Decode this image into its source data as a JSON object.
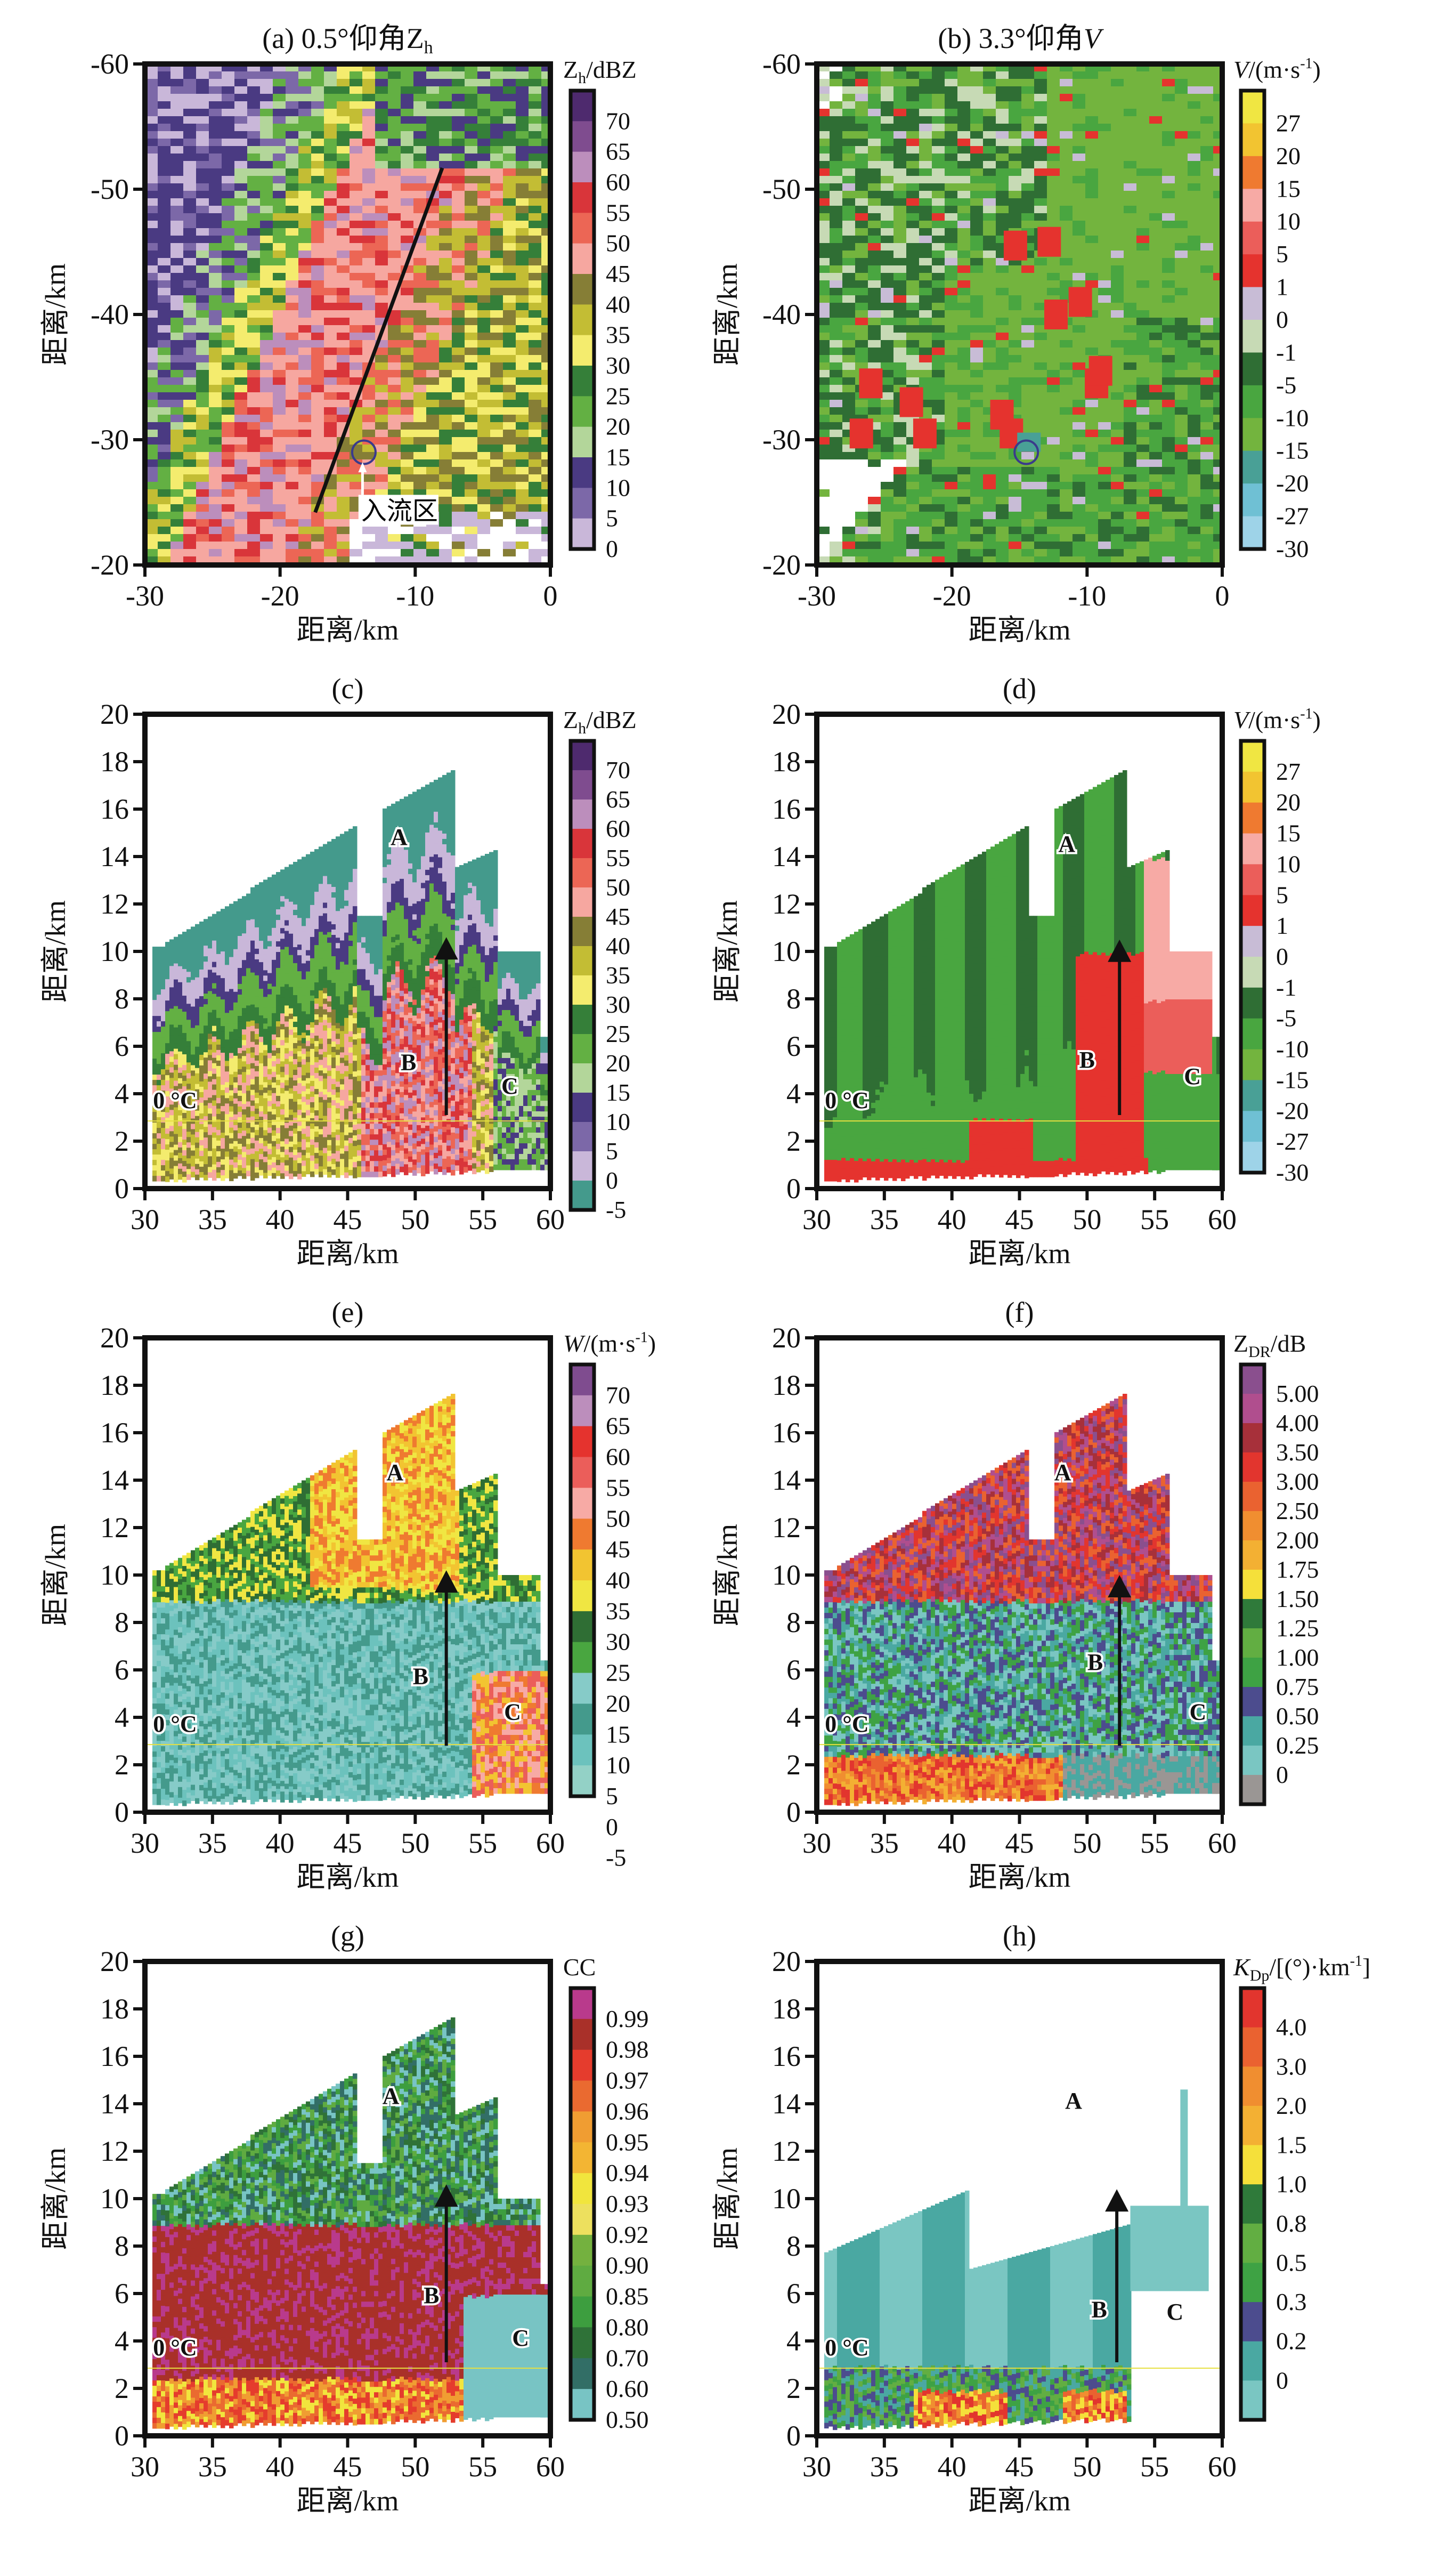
{
  "figure": {
    "panels_count": 8
  },
  "chart_data": [
    {
      "id": "a",
      "type": "heatmap",
      "title": "(a) 0.5°仰角Z",
      "title_sub": "h",
      "xlabel": "距离/km",
      "ylabel": "距离/km",
      "xlim": [
        -30,
        0
      ],
      "ylim": [
        -20,
        -60
      ],
      "xticks": [
        "-30",
        "-20",
        "-10",
        "0"
      ],
      "yticks": [
        "-60",
        "-50",
        "-40",
        "-30",
        "-20"
      ],
      "grid": false,
      "colorbar": {
        "title": "Z",
        "title_sub": "h",
        "title_rest": "/dBZ",
        "labels": [
          "70",
          "65",
          "60",
          "55",
          "50",
          "45",
          "40",
          "35",
          "30",
          "25",
          "20",
          "15",
          "10",
          "5",
          "0"
        ],
        "colors": [
          "#4e2a6e",
          "#7f4c8f",
          "#bc8ebc",
          "#d9353a",
          "#ec6655",
          "#f6a7a0",
          "#867e36",
          "#c3bd34",
          "#f4ec6e",
          "#357f39",
          "#63b043",
          "#b3d69a",
          "#4a3a82",
          "#7c68a8",
          "#c9b7d9"
        ]
      },
      "annotations": [
        {
          "text": "入流区",
          "x": -13.5,
          "y": -25.8
        },
        {
          "text": "cross-section line",
          "from": [
            -17.4,
            -24.2
          ],
          "to": [
            -8.0,
            -51.7
          ]
        },
        {
          "text": "inflow circle",
          "x": -13.8,
          "y": -29.0
        }
      ],
      "description": "Reflectivity PPI: core of 45–60 dBZ along line from (-17,-24) to (-8,-52); weak echo (0–15 dBZ) west and south"
    },
    {
      "id": "b",
      "type": "heatmap",
      "title": "(b) 3.3°仰角",
      "title_var": "V",
      "xlabel": "距离/km",
      "ylabel": "距离/km",
      "xlim": [
        -30,
        0
      ],
      "ylim": [
        -20,
        -60
      ],
      "xticks": [
        "-30",
        "-20",
        "-10",
        "0"
      ],
      "yticks": [
        "-60",
        "-50",
        "-40",
        "-30",
        "-20"
      ],
      "grid": false,
      "colorbar": {
        "title": "V",
        "title_rest": "/(m·s",
        "title_sup": "-1",
        "title_end": ")",
        "labels": [
          "27",
          "20",
          "15",
          "10",
          "5",
          "1",
          "0",
          "-1",
          "-5",
          "-10",
          "-15",
          "-20",
          "-27",
          "-30"
        ],
        "colors": [
          "#f0e642",
          "#f2c431",
          "#ef7a30",
          "#f7aaa5",
          "#eb5e5a",
          "#e5332e",
          "#c8bcd6",
          "#c7dab5",
          "#2f6e34",
          "#49a640",
          "#73b43e",
          "#49a096",
          "#6fc0d4",
          "#9ed3e8"
        ]
      },
      "annotations": [
        {
          "text": "circle",
          "x": -14.5,
          "y": -29.0
        }
      ],
      "description": "Radial velocity PPI: mostly -5 to -15 m/s with positive (1–10) couplets near (-16,-32), (-9,-34), (-12,-40)"
    },
    {
      "id": "c",
      "type": "heatmap",
      "title": "(c)",
      "xlabel": "距离/km",
      "ylabel": "距离/km",
      "xlim": [
        30,
        60
      ],
      "ylim": [
        0,
        20
      ],
      "xticks": [
        "30",
        "35",
        "40",
        "45",
        "50",
        "55",
        "60"
      ],
      "yticks": [
        "0",
        "2",
        "4",
        "6",
        "8",
        "10",
        "12",
        "14",
        "16",
        "18",
        "20"
      ],
      "colorbar": {
        "title": "Z",
        "title_sub": "h",
        "title_rest": "/dBZ",
        "labels": [
          "70",
          "65",
          "60",
          "55",
          "50",
          "45",
          "40",
          "35",
          "30",
          "25",
          "20",
          "15",
          "10",
          "5",
          "0",
          "-5"
        ],
        "colors": [
          "#4e2a6e",
          "#7f4c8f",
          "#bc8ebc",
          "#d9353a",
          "#ec6655",
          "#f6a7a0",
          "#867e36",
          "#c3bd34",
          "#f4ec6e",
          "#357f39",
          "#63b043",
          "#b3d69a",
          "#4a3a82",
          "#7c68a8",
          "#c9b7d9",
          "#449a8c"
        ]
      },
      "freezing_level": {
        "label": "0 °C",
        "height_km": 2.85
      },
      "region_labels": [
        {
          "text": "A",
          "x": 48.8,
          "y": 14.5
        },
        {
          "text": "B",
          "x": 49.5,
          "y": 5.0
        },
        {
          "text": "C",
          "x": 57.0,
          "y": 4.0
        }
      ],
      "arrow": {
        "x": 52.3,
        "y_from": 3.1,
        "y_to": 10.6
      }
    },
    {
      "id": "d",
      "type": "heatmap",
      "title": "(d)",
      "xlabel": "距离/km",
      "ylabel": "距离/km",
      "xlim": [
        30,
        60
      ],
      "ylim": [
        0,
        20
      ],
      "xticks": [
        "30",
        "35",
        "40",
        "45",
        "50",
        "55",
        "60"
      ],
      "yticks": [
        "0",
        "2",
        "4",
        "6",
        "8",
        "10",
        "12",
        "14",
        "16",
        "18",
        "20"
      ],
      "colorbar": {
        "title": "V",
        "title_rest": "/(m·s",
        "title_sup": "-1",
        "title_end": ")",
        "labels": [
          "27",
          "20",
          "15",
          "10",
          "5",
          "1",
          "0",
          "-1",
          "-5",
          "-10",
          "-15",
          "-20",
          "-27",
          "-30"
        ],
        "colors": [
          "#f0e642",
          "#f2c431",
          "#ef7a30",
          "#f7aaa5",
          "#eb5e5a",
          "#e5332e",
          "#c8bcd6",
          "#c7dab5",
          "#2f6e34",
          "#49a640",
          "#73b43e",
          "#49a096",
          "#6fc0d4",
          "#9ed3e8"
        ]
      },
      "freezing_level": {
        "label": "0 °C",
        "height_km": 2.85
      },
      "region_labels": [
        {
          "text": "A",
          "x": 48.5,
          "y": 14.2
        },
        {
          "text": "B",
          "x": 50.0,
          "y": 5.1
        },
        {
          "text": "C",
          "x": 57.8,
          "y": 4.4
        }
      ],
      "arrow": {
        "x": 52.4,
        "y_from": 3.1,
        "y_to": 10.5
      }
    },
    {
      "id": "e",
      "type": "heatmap",
      "title": "(e)",
      "xlabel": "距离/km",
      "ylabel": "距离/km",
      "xlim": [
        30,
        60
      ],
      "ylim": [
        0,
        20
      ],
      "xticks": [
        "30",
        "35",
        "40",
        "45",
        "50",
        "55",
        "60"
      ],
      "yticks": [
        "0",
        "2",
        "4",
        "6",
        "8",
        "10",
        "12",
        "14",
        "16",
        "18",
        "20"
      ],
      "colorbar": {
        "title": "W",
        "title_rest": "/(m·s",
        "title_sup": "-1",
        "title_end": ")",
        "labels": [
          "70",
          "65",
          "60",
          "55",
          "50",
          "45",
          "40",
          "35",
          "30",
          "25",
          "20",
          "15",
          "10",
          "5",
          "0",
          "-5"
        ],
        "colors": [
          "#7f4c8f",
          "#bc8ebc",
          "#e5332e",
          "#eb5e5a",
          "#f7aaa5",
          "#ef7a30",
          "#f2c431",
          "#f0e642",
          "#2f6e34",
          "#49a640",
          "#86cbc8",
          "#449a8c",
          "#6cc2bd",
          "#93d1c6"
        ]
      },
      "freezing_level": {
        "label": "0 °C",
        "height_km": 2.85
      },
      "region_labels": [
        {
          "text": "A",
          "x": 48.5,
          "y": 14.0
        },
        {
          "text": "B",
          "x": 50.4,
          "y": 5.4
        },
        {
          "text": "C",
          "x": 57.2,
          "y": 3.9
        }
      ],
      "arrow": {
        "x": 52.3,
        "y_from": 2.8,
        "y_to": 10.2
      }
    },
    {
      "id": "f",
      "type": "heatmap",
      "title": "(f)",
      "xlabel": "距离/km",
      "ylabel": "距离/km",
      "xlim": [
        30,
        60
      ],
      "ylim": [
        0,
        20
      ],
      "xticks": [
        "30",
        "35",
        "40",
        "45",
        "50",
        "55",
        "60"
      ],
      "yticks": [
        "0",
        "2",
        "4",
        "6",
        "8",
        "10",
        "12",
        "14",
        "16",
        "18",
        "20"
      ],
      "colorbar": {
        "title": "Z",
        "title_sub": "DR",
        "title_rest": "/dB",
        "labels": [
          "5.00",
          "4.00",
          "3.50",
          "3.00",
          "2.50",
          "2.00",
          "1.75",
          "1.50",
          "1.25",
          "1.00",
          "0.75",
          "0.50",
          "0.25",
          "0"
        ],
        "colors": [
          "#8a4f8e",
          "#b04e8e",
          "#a7303a",
          "#e2352e",
          "#ea6230",
          "#f08e30",
          "#f3b033",
          "#f5e03a",
          "#2f7a3a",
          "#62ae42",
          "#3ea244",
          "#4c4c8e",
          "#4aa8a2",
          "#7ac6c2",
          "#9a9694"
        ]
      },
      "freezing_level": {
        "label": "0 °C",
        "height_km": 2.85
      },
      "region_labels": [
        {
          "text": "A",
          "x": 48.2,
          "y": 14.0
        },
        {
          "text": "B",
          "x": 50.6,
          "y": 6.0
        },
        {
          "text": "C",
          "x": 58.2,
          "y": 3.9
        }
      ],
      "arrow": {
        "x": 52.4,
        "y_from": 2.8,
        "y_to": 10.0
      }
    },
    {
      "id": "g",
      "type": "heatmap",
      "title": "(g)",
      "xlabel": "距离/km",
      "ylabel": "距离/km",
      "xlim": [
        30,
        60
      ],
      "ylim": [
        0,
        20
      ],
      "xticks": [
        "30",
        "35",
        "40",
        "45",
        "50",
        "55",
        "60"
      ],
      "yticks": [
        "0",
        "2",
        "4",
        "6",
        "8",
        "10",
        "12",
        "14",
        "16",
        "18",
        "20"
      ],
      "colorbar": {
        "title": "CC",
        "title_rest": "",
        "labels": [
          "0.99",
          "0.98",
          "0.97",
          "0.96",
          "0.95",
          "0.94",
          "0.93",
          "0.92",
          "0.90",
          "0.85",
          "0.80",
          "0.70",
          "0.60",
          "0.50"
        ],
        "colors": [
          "#b93a8c",
          "#a93029",
          "#e53c2d",
          "#ea6a30",
          "#f09d32",
          "#f3b533",
          "#f1e53d",
          "#ede05e",
          "#74b13f",
          "#5fab41",
          "#3d9e3f",
          "#2f7238",
          "#326e66",
          "#78c4c4"
        ]
      },
      "freezing_level": {
        "label": "0 °C",
        "height_km": 2.85
      },
      "region_labels": [
        {
          "text": "A",
          "x": 48.2,
          "y": 14.0
        },
        {
          "text": "B",
          "x": 51.2,
          "y": 5.6
        },
        {
          "text": "C",
          "x": 57.8,
          "y": 3.8
        }
      ],
      "arrow": {
        "x": 52.3,
        "y_from": 3.1,
        "y_to": 10.6
      }
    },
    {
      "id": "h",
      "type": "heatmap",
      "title": "(h)",
      "xlabel": "距离/km",
      "ylabel": "距离/km",
      "xlim": [
        30,
        60
      ],
      "ylim": [
        0,
        20
      ],
      "xticks": [
        "30",
        "35",
        "40",
        "45",
        "50",
        "55",
        "60"
      ],
      "yticks": [
        "0",
        "2",
        "4",
        "6",
        "8",
        "10",
        "12",
        "14",
        "16",
        "18",
        "20"
      ],
      "colorbar": {
        "title": "K",
        "title_sub": "Dp",
        "title_rest": "/[(°)·km",
        "title_sup": "-1",
        "title_end": "]",
        "labels": [
          "4.0",
          "3.0",
          "2.0",
          "1.5",
          "1.0",
          "0.8",
          "0.5",
          "0.3",
          "0.2",
          "0"
        ],
        "colors": [
          "#e2352e",
          "#ea6230",
          "#f08e30",
          "#f3b033",
          "#f5e03a",
          "#2f7a3a",
          "#62ae42",
          "#3ea244",
          "#4c4c8e",
          "#4aa8a2",
          "#7ac6c2"
        ]
      },
      "freezing_level": {
        "label": "0 °C",
        "height_km": 2.85
      },
      "region_labels": [
        {
          "text": "A",
          "x": 49.0,
          "y": 13.8
        },
        {
          "text": "B",
          "x": 50.9,
          "y": 5.0
        },
        {
          "text": "C",
          "x": 56.5,
          "y": 4.9
        }
      ],
      "arrow": {
        "x": 52.2,
        "y_from": 3.1,
        "y_to": 10.4
      }
    }
  ]
}
